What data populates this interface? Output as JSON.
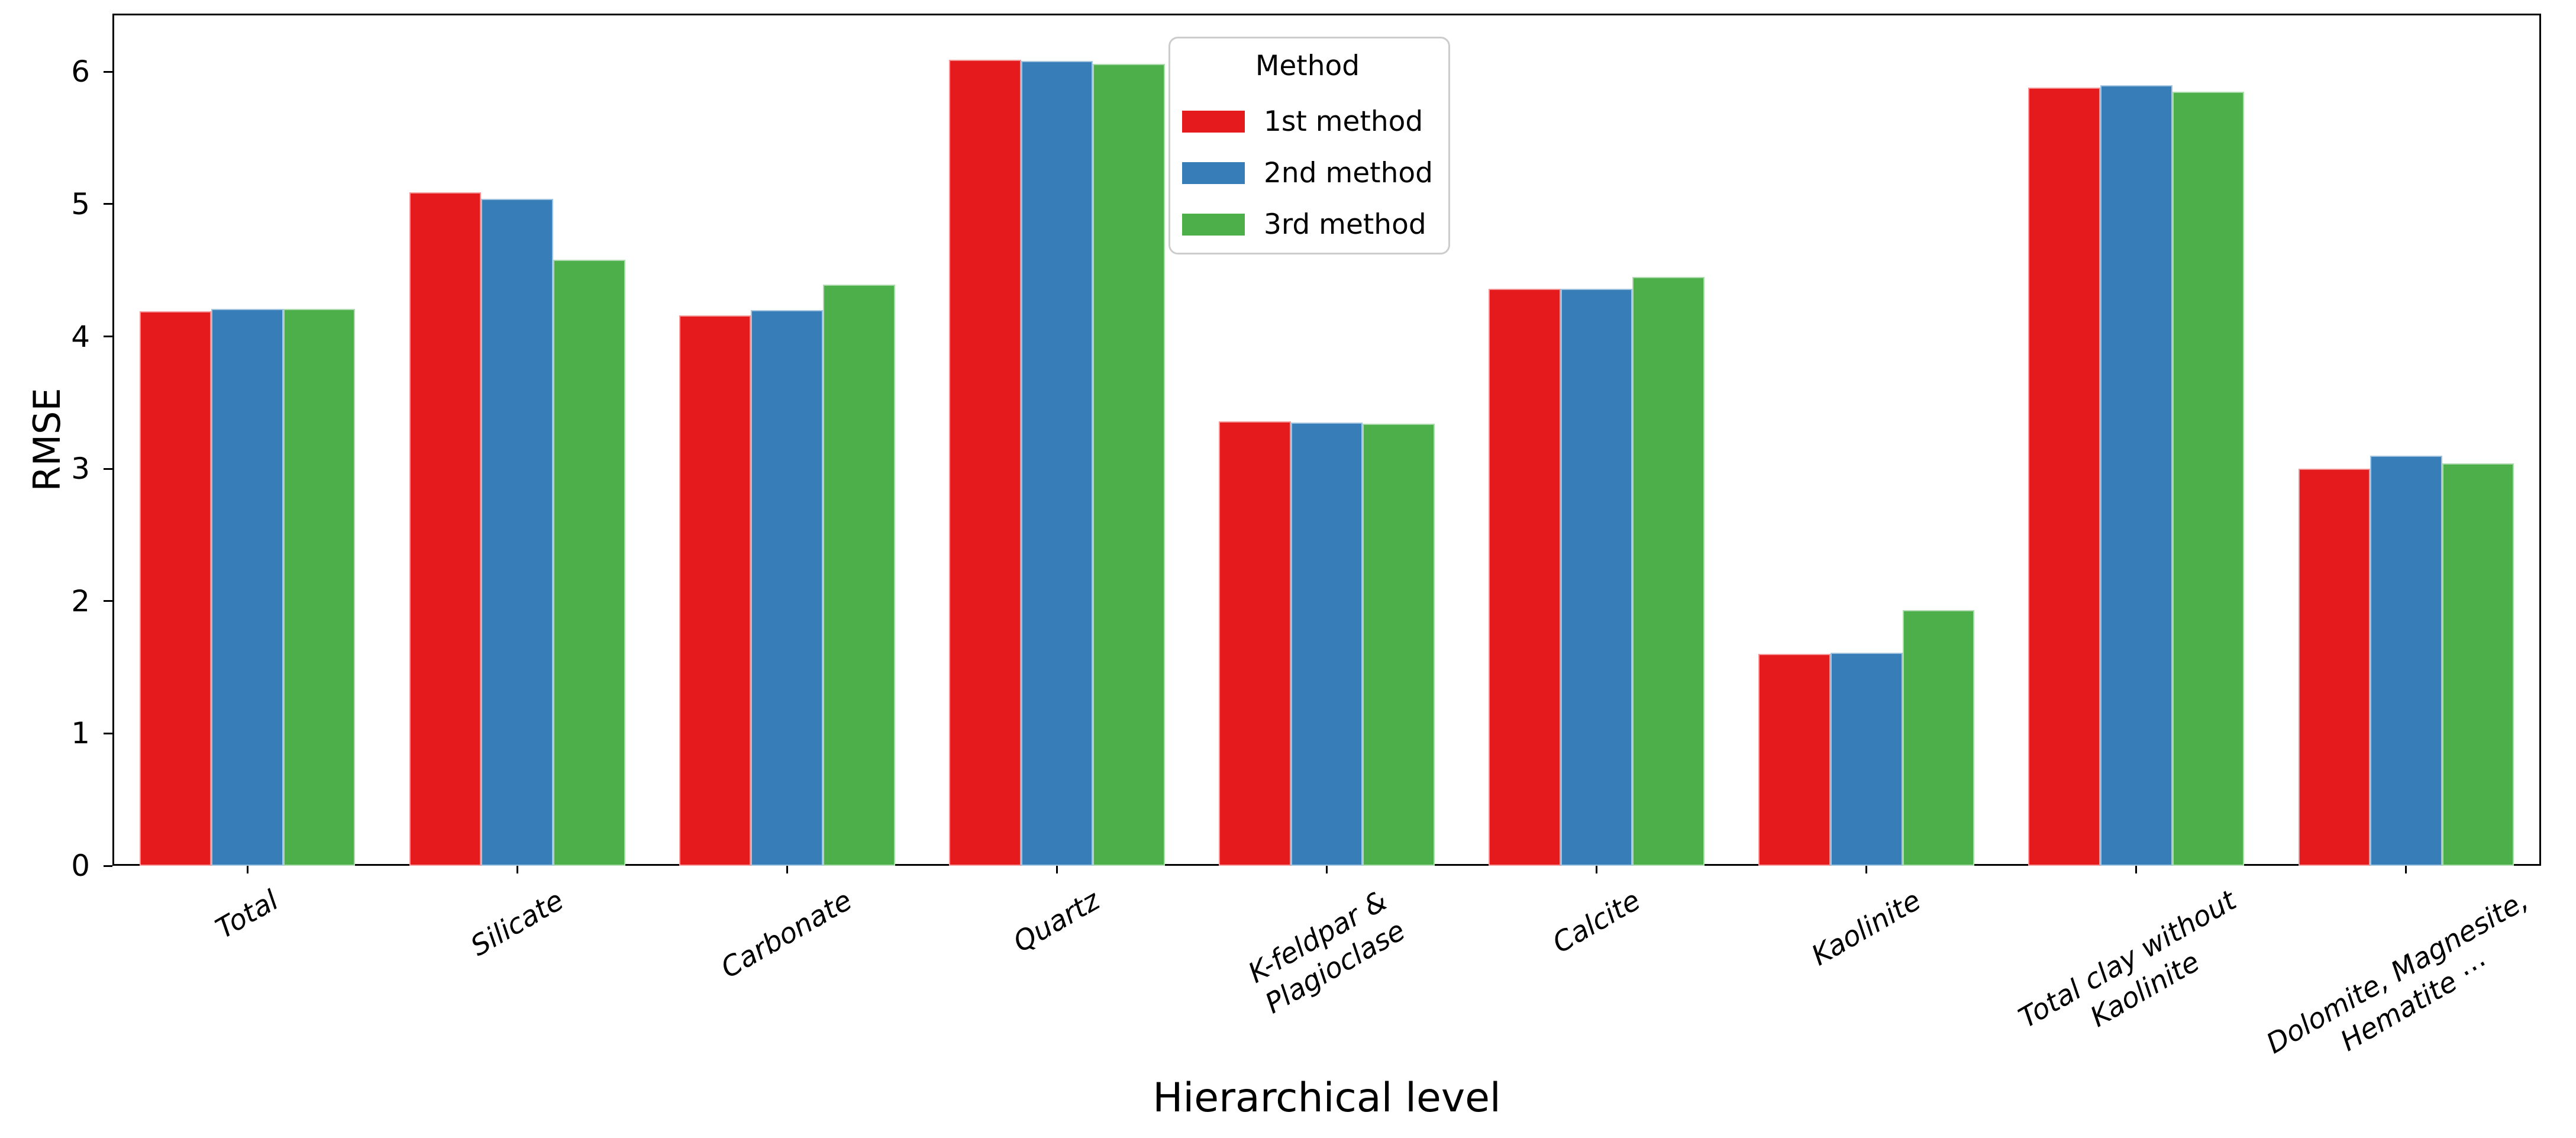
{
  "figure": {
    "background_color": "#ffffff",
    "text_color": "#000000"
  },
  "chart_data": {
    "type": "bar",
    "title": "",
    "xlabel": "Hierarchical level",
    "ylabel": "RMSE",
    "ylim": [
      0,
      6.44
    ],
    "yticks": [
      "0",
      "1",
      "2",
      "3",
      "4",
      "5",
      "6"
    ],
    "grid": false,
    "bar_group_width_fraction": 0.8,
    "categories": [
      {
        "label_lines": [
          "Total"
        ]
      },
      {
        "label_lines": [
          "Silicate"
        ]
      },
      {
        "label_lines": [
          "Carbonate"
        ]
      },
      {
        "label_lines": [
          "Quartz"
        ]
      },
      {
        "label_lines": [
          "K-feldpar &",
          "Plagioclase"
        ]
      },
      {
        "label_lines": [
          "Calcite"
        ]
      },
      {
        "label_lines": [
          "Kaolinite"
        ]
      },
      {
        "label_lines": [
          "Total clay without",
          "Kaolinite"
        ]
      },
      {
        "label_lines": [
          "Dolomite, Magnesite,",
          "Hematite ⋯"
        ]
      }
    ],
    "series": [
      {
        "name": "1st method",
        "color": "#e41a1c",
        "values": [
          4.19,
          5.09,
          4.16,
          6.09,
          3.36,
          4.36,
          1.6,
          5.88,
          3.0
        ]
      },
      {
        "name": "2nd method",
        "color": "#377eb8",
        "values": [
          4.21,
          5.04,
          4.2,
          6.08,
          3.35,
          4.36,
          1.61,
          5.9,
          3.1
        ]
      },
      {
        "name": "3rd method",
        "color": "#4daf4a",
        "values": [
          4.21,
          4.58,
          4.39,
          6.06,
          3.34,
          4.45,
          1.93,
          5.85,
          3.04
        ]
      }
    ],
    "legend": {
      "title": "Method",
      "position": "upper center",
      "frame": true
    }
  }
}
